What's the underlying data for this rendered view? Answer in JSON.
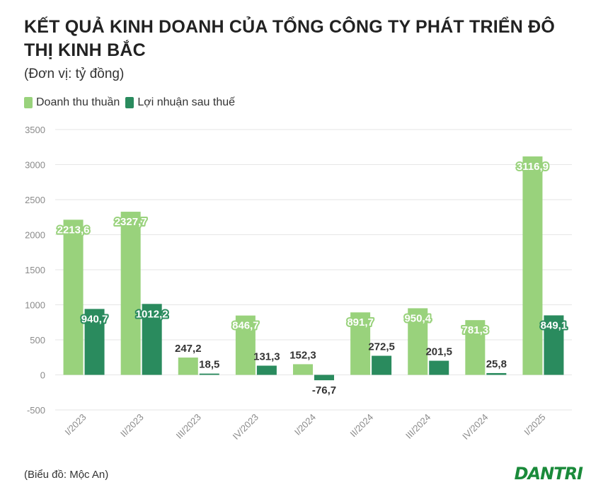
{
  "header": {
    "title": "KẾT QUẢ KINH DOANH CỦA TỔNG CÔNG TY PHÁT TRIỂN ĐÔ THỊ KINH BẮC",
    "unit": "(Đơn vị: tỷ đồng)"
  },
  "footer": {
    "source": "(Biểu đồ: Mộc An)",
    "brand": "DANTRI"
  },
  "colors": {
    "revenue": "#99d27c",
    "profit": "#2a8b5e",
    "grid": "#e6e6e6",
    "axis_text": "#8a8a8a"
  },
  "chart_data": {
    "type": "bar",
    "categories": [
      "I/2023",
      "II/2023",
      "III/2023",
      "IV/2023",
      "I/2024",
      "II/2024",
      "III/2024",
      "IV/2024",
      "I/2025"
    ],
    "series": [
      {
        "name": "Doanh thu thuần",
        "values": [
          2213.6,
          2327.7,
          247.2,
          846.7,
          152.3,
          891.7,
          950.4,
          781.3,
          3116.9
        ],
        "labels": [
          "2213,6",
          "2327,7",
          "247,2",
          "846,7",
          "152,3",
          "891,7",
          "950,4",
          "781,3",
          "3116,9"
        ]
      },
      {
        "name": "Lợi nhuận sau thuế",
        "values": [
          940.7,
          1012.2,
          18.5,
          131.3,
          -76.7,
          272.5,
          201.5,
          25.8,
          849.1
        ],
        "labels": [
          "940,7",
          "1012,2",
          "18,5",
          "131,3",
          "-76,7",
          "272,5",
          "201,5",
          "25,8",
          "849,1"
        ]
      }
    ],
    "ylim": [
      -500,
      3500
    ],
    "yticks": [
      -500,
      0,
      500,
      1000,
      1500,
      2000,
      2500,
      3000,
      3500
    ],
    "grid": true,
    "legend_position": "top-left"
  }
}
